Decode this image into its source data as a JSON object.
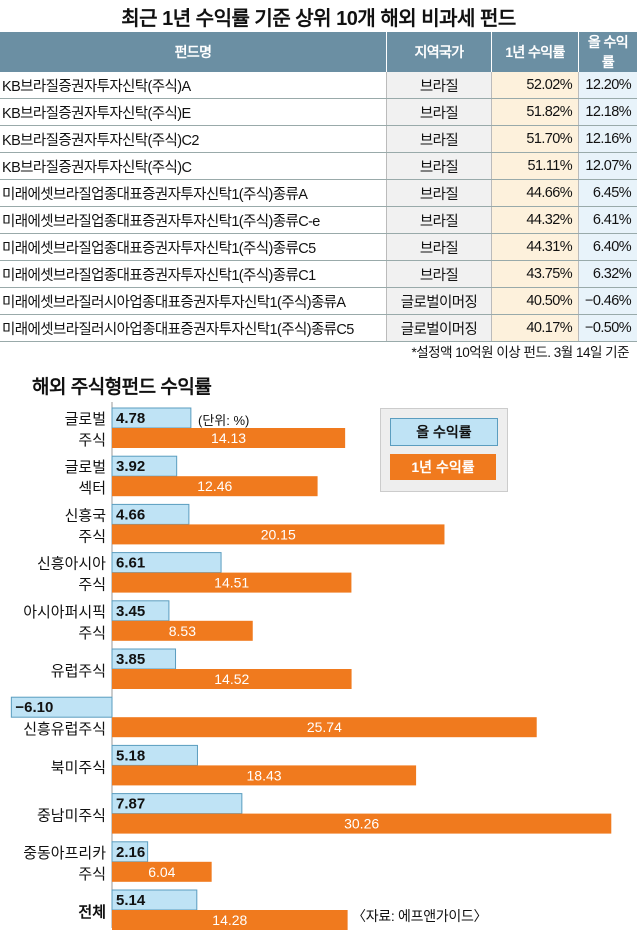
{
  "table": {
    "title": "최근 1년 수익률 기준 상위 10개 해외 비과세 펀드",
    "headers": [
      "펀드명",
      "지역국가",
      "1년 수익률",
      "올 수익률"
    ],
    "rows": [
      {
        "name": "KB브라질증권자투자신탁(주식)A",
        "region": "브라질",
        "y1": "52.02%",
        "ytd": "12.20%"
      },
      {
        "name": "KB브라질증권자투자신탁(주식)E",
        "region": "브라질",
        "y1": "51.82%",
        "ytd": "12.18%"
      },
      {
        "name": "KB브라질증권자투자신탁(주식)C2",
        "region": "브라질",
        "y1": "51.70%",
        "ytd": "12.16%"
      },
      {
        "name": "KB브라질증권자투자신탁(주식)C",
        "region": "브라질",
        "y1": "51.11%",
        "ytd": "12.07%"
      },
      {
        "name": "미래에셋브라질업종대표증권자투자신탁1(주식)종류A",
        "region": "브라질",
        "y1": "44.66%",
        "ytd": "6.45%"
      },
      {
        "name": "미래에셋브라질업종대표증권자투자신탁1(주식)종류C-e",
        "region": "브라질",
        "y1": "44.32%",
        "ytd": "6.41%"
      },
      {
        "name": "미래에셋브라질업종대표증권자투자신탁1(주식)종류C5",
        "region": "브라질",
        "y1": "44.31%",
        "ytd": "6.40%"
      },
      {
        "name": "미래에셋브라질업종대표증권자투자신탁1(주식)종류C1",
        "region": "브라질",
        "y1": "43.75%",
        "ytd": "6.32%"
      },
      {
        "name": "미래에셋브라질러시아업종대표증권자투자신탁1(주식)종류A",
        "region": "글로벌이머징",
        "y1": "40.50%",
        "ytd": "−0.46%"
      },
      {
        "name": "미래에셋브라질러시아업종대표증권자투자신탁1(주식)종류C5",
        "region": "글로벌이머징",
        "y1": "40.17%",
        "ytd": "−0.50%"
      }
    ],
    "note": "*설정액 10억원 이상 펀드. 3월 14일 기준"
  },
  "colors": {
    "header_bg": "#6b8fa3",
    "ytd_bar": "#bfe3f5",
    "ytd_border": "#5b9dbf",
    "y1_bar": "#f07a1e"
  },
  "chart_data": {
    "type": "bar",
    "orientation": "horizontal",
    "title": "해외 주식형펀드 수익률",
    "unit_label": "(단위: %)",
    "categories": [
      [
        "글로벌",
        "주식"
      ],
      [
        "글로벌",
        "섹터"
      ],
      [
        "신흥국",
        "주식"
      ],
      [
        "신흥아시아",
        "주식"
      ],
      [
        "아시아퍼시픽",
        "주식"
      ],
      [
        "유럽주식"
      ],
      [
        "신흥유럽주식"
      ],
      [
        "북미주식"
      ],
      [
        "중남미주식"
      ],
      [
        "중동아프리카",
        "주식"
      ],
      [
        "전체"
      ]
    ],
    "series": [
      {
        "name": "올 수익률",
        "values": [
          4.78,
          3.92,
          4.66,
          6.61,
          3.45,
          3.85,
          -6.1,
          5.18,
          7.87,
          2.16,
          5.14
        ]
      },
      {
        "name": "1년 수익률",
        "values": [
          14.13,
          12.46,
          20.15,
          14.51,
          8.53,
          14.52,
          25.74,
          18.43,
          30.26,
          6.04,
          14.28
        ]
      }
    ],
    "value_labels": [
      [
        "4.78",
        "3.92",
        "4.66",
        "6.61",
        "3.45",
        "3.85",
        "−6.10",
        "5.18",
        "7.87",
        "2.16",
        "5.14"
      ],
      [
        "14.13",
        "12.46",
        "20.15",
        "14.51",
        "8.53",
        "14.52",
        "25.74",
        "18.43",
        "30.26",
        "6.04",
        "14.28"
      ]
    ],
    "bold_category": "전체",
    "legend": [
      "올 수익률",
      "1년 수익률"
    ],
    "legend_placement": "top-right",
    "source": "〈자료: 에프앤가이드〉"
  }
}
